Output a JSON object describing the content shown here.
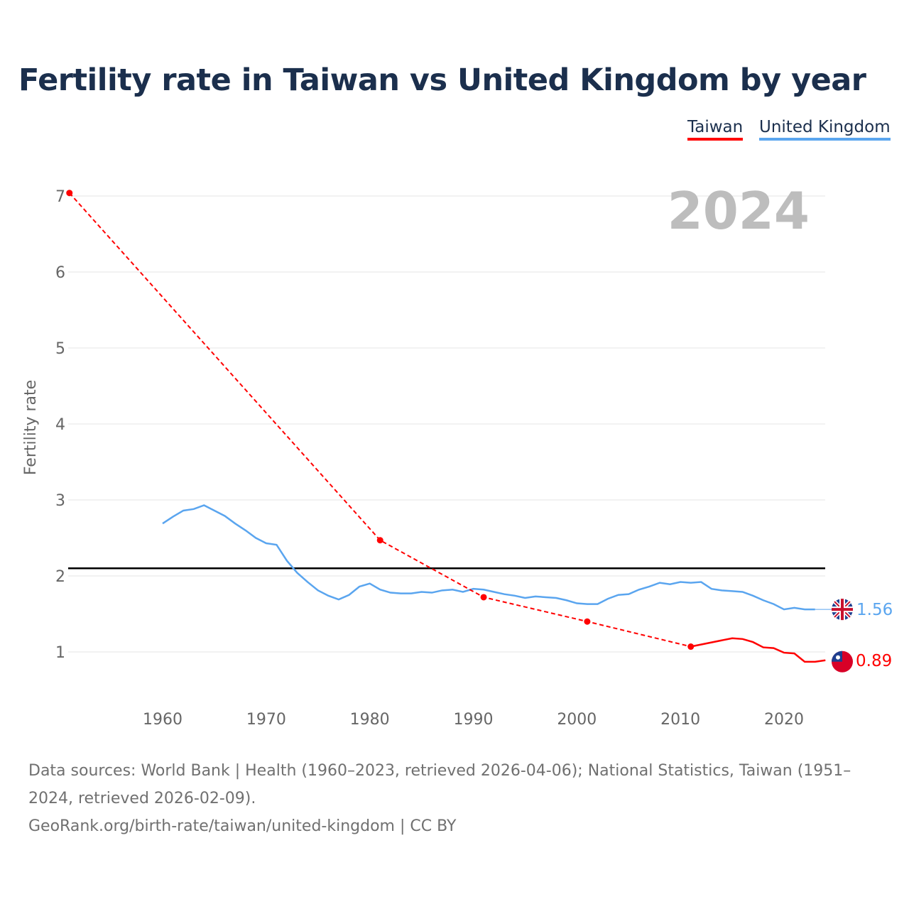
{
  "title": "Fertility rate in Taiwan vs United Kingdom by year",
  "legend": {
    "taiwan": "Taiwan",
    "uk": "United Kingdom"
  },
  "year_label": "2024",
  "footer": {
    "line1": "Data sources: World Bank | Health (1960–2023, retrieved 2026-04-06); National Statistics, Taiwan (1951–2024, retrieved 2026-02-09).",
    "line2": "GeoRank.org/birth-rate/taiwan/united-kingdom | CC BY"
  },
  "colors": {
    "taiwan": "#ff0000",
    "uk": "#5aa5ef",
    "reference": "#000000"
  },
  "chart_data": {
    "type": "line",
    "title": "Fertility rate in Taiwan vs United Kingdom by year",
    "xlabel": "",
    "ylabel": "Fertility rate",
    "xlim": [
      1951,
      2024
    ],
    "ylim": [
      0.5,
      7.2
    ],
    "xticks": [
      1960,
      1970,
      1980,
      1990,
      2000,
      2010,
      2020
    ],
    "yticks": [
      1,
      2,
      3,
      4,
      5,
      6,
      7
    ],
    "reference_line": 2.1,
    "series": [
      {
        "name": "Taiwan",
        "end_label": "0.89",
        "points": [
          [
            1951,
            7.04
          ],
          [
            1981,
            2.47
          ],
          [
            1991,
            1.72
          ],
          [
            2001,
            1.4
          ],
          [
            2011,
            1.07
          ],
          [
            2015,
            1.18
          ],
          [
            2016,
            1.17
          ],
          [
            2017,
            1.13
          ],
          [
            2018,
            1.06
          ],
          [
            2019,
            1.05
          ],
          [
            2020,
            0.99
          ],
          [
            2021,
            0.98
          ],
          [
            2022,
            0.87
          ],
          [
            2023,
            0.87
          ],
          [
            2024,
            0.89
          ]
        ],
        "dashed_until": 2011
      },
      {
        "name": "United Kingdom",
        "end_label": "1.56",
        "points": [
          [
            1960,
            2.69
          ],
          [
            1961,
            2.78
          ],
          [
            1962,
            2.86
          ],
          [
            1963,
            2.88
          ],
          [
            1964,
            2.93
          ],
          [
            1965,
            2.86
          ],
          [
            1966,
            2.79
          ],
          [
            1967,
            2.69
          ],
          [
            1968,
            2.6
          ],
          [
            1969,
            2.5
          ],
          [
            1970,
            2.43
          ],
          [
            1971,
            2.41
          ],
          [
            1972,
            2.2
          ],
          [
            1973,
            2.04
          ],
          [
            1974,
            1.92
          ],
          [
            1975,
            1.81
          ],
          [
            1976,
            1.74
          ],
          [
            1977,
            1.69
          ],
          [
            1978,
            1.75
          ],
          [
            1979,
            1.86
          ],
          [
            1980,
            1.9
          ],
          [
            1981,
            1.82
          ],
          [
            1982,
            1.78
          ],
          [
            1983,
            1.77
          ],
          [
            1984,
            1.77
          ],
          [
            1985,
            1.79
          ],
          [
            1986,
            1.78
          ],
          [
            1987,
            1.81
          ],
          [
            1988,
            1.82
          ],
          [
            1989,
            1.79
          ],
          [
            1990,
            1.83
          ],
          [
            1991,
            1.82
          ],
          [
            1992,
            1.79
          ],
          [
            1993,
            1.76
          ],
          [
            1994,
            1.74
          ],
          [
            1995,
            1.71
          ],
          [
            1996,
            1.73
          ],
          [
            1997,
            1.72
          ],
          [
            1998,
            1.71
          ],
          [
            1999,
            1.68
          ],
          [
            2000,
            1.64
          ],
          [
            2001,
            1.63
          ],
          [
            2002,
            1.63
          ],
          [
            2003,
            1.7
          ],
          [
            2004,
            1.75
          ],
          [
            2005,
            1.76
          ],
          [
            2006,
            1.82
          ],
          [
            2007,
            1.86
          ],
          [
            2008,
            1.91
          ],
          [
            2009,
            1.89
          ],
          [
            2010,
            1.92
          ],
          [
            2011,
            1.91
          ],
          [
            2012,
            1.92
          ],
          [
            2013,
            1.83
          ],
          [
            2014,
            1.81
          ],
          [
            2015,
            1.8
          ],
          [
            2016,
            1.79
          ],
          [
            2017,
            1.74
          ],
          [
            2018,
            1.68
          ],
          [
            2019,
            1.63
          ],
          [
            2020,
            1.56
          ],
          [
            2021,
            1.58
          ],
          [
            2022,
            1.56
          ],
          [
            2023,
            1.56
          ]
        ]
      }
    ]
  }
}
